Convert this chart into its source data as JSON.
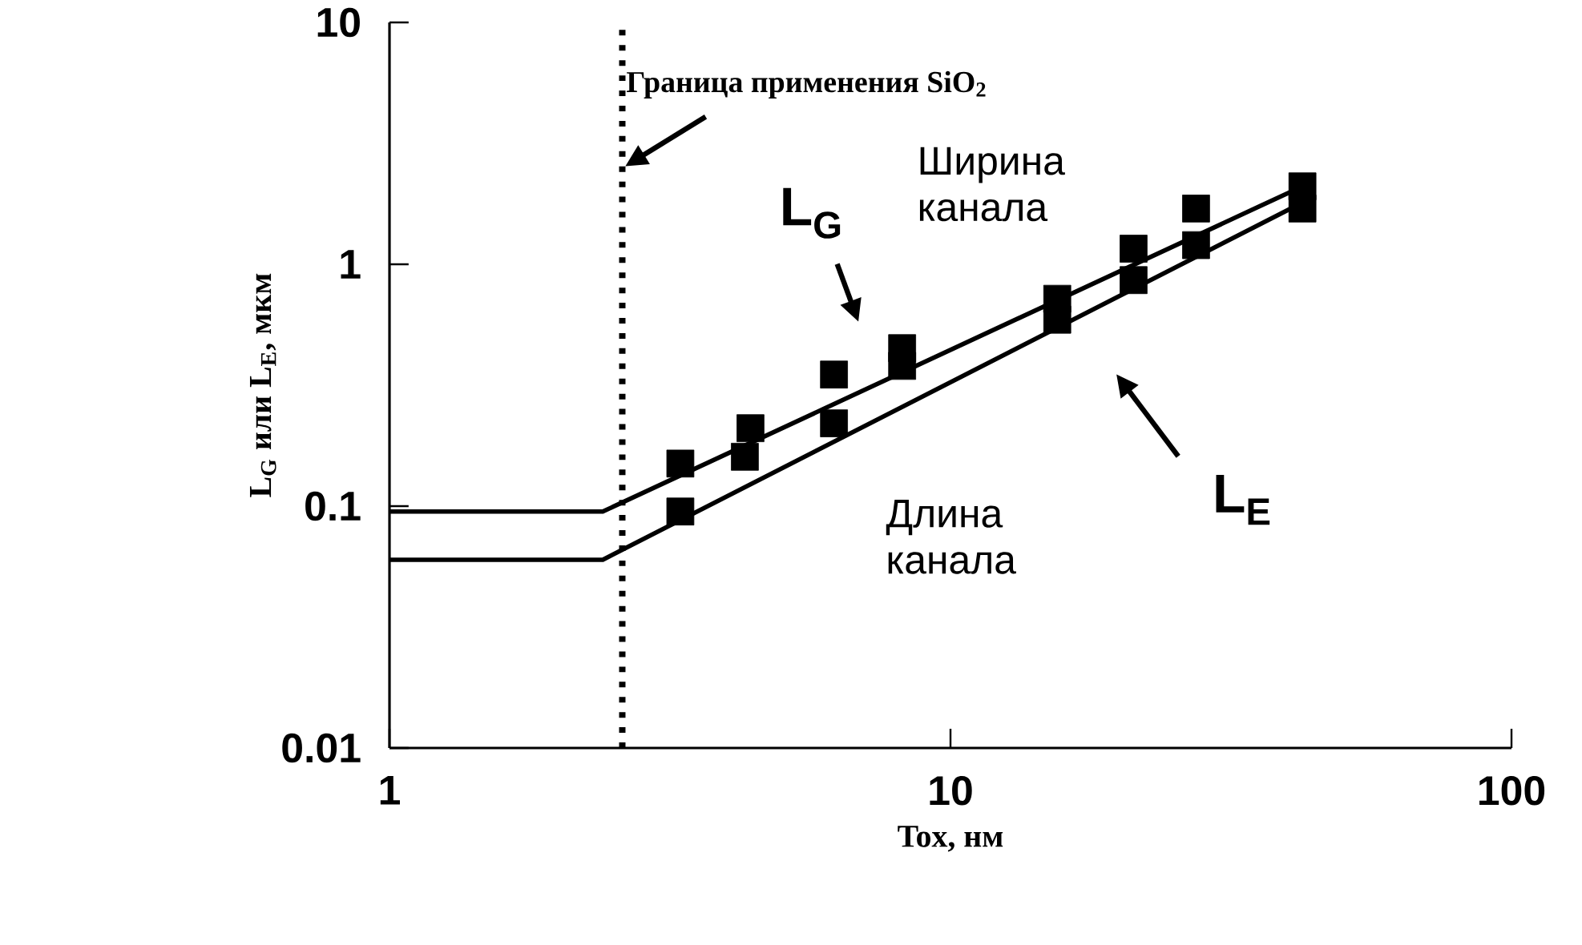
{
  "chart_data": {
    "type": "line",
    "xlabel": "Tox, нм",
    "ylabel": "L$_{G}$ или L$_{E}$, мкм",
    "log": "xy",
    "xlim": [
      1,
      100
    ],
    "ylim": [
      0.01,
      10
    ],
    "xticks": [
      1,
      10,
      100
    ],
    "yticks": [
      0.01,
      0.1,
      1,
      10
    ],
    "series": [
      {
        "color": "#000000",
        "x": [
          1,
          2.4,
          42.4
        ],
        "values": [
          0.095,
          0.095,
          2.1
        ]
      },
      {
        "color": "#000000",
        "x": [
          1,
          2.4,
          42.4
        ],
        "values": [
          0.06,
          0.06,
          1.8
        ]
      },
      {
        "type": "scatter",
        "marker": "square",
        "color": "#000000",
        "x": [
          3.3,
          4.4,
          6.2,
          8.2,
          15.5,
          21.2,
          27.4,
          42.4
        ],
        "values": [
          0.15,
          0.21,
          0.35,
          0.45,
          0.72,
          1.16,
          1.7,
          2.1
        ]
      },
      {
        "type": "scatter",
        "marker": "square",
        "color": "#000000",
        "x": [
          3.3,
          4.3,
          6.2,
          8.2,
          15.5,
          21.2,
          27.4,
          42.4
        ],
        "values": [
          0.095,
          0.16,
          0.22,
          0.38,
          0.59,
          0.86,
          1.2,
          1.7
        ]
      }
    ],
    "ref_lines": [
      {
        "axis": "x",
        "value": 2.6,
        "line_style": "dotted",
        "color": "#000000"
      }
    ],
    "annotations": [
      {
        "text": "Граница применения SiO$_{2}$",
        "x": 2.6,
        "y": 2.5
      },
      "Ширина канала",
      "L$_{G}$",
      "Длина канала",
      "L$_{E}$"
    ]
  }
}
